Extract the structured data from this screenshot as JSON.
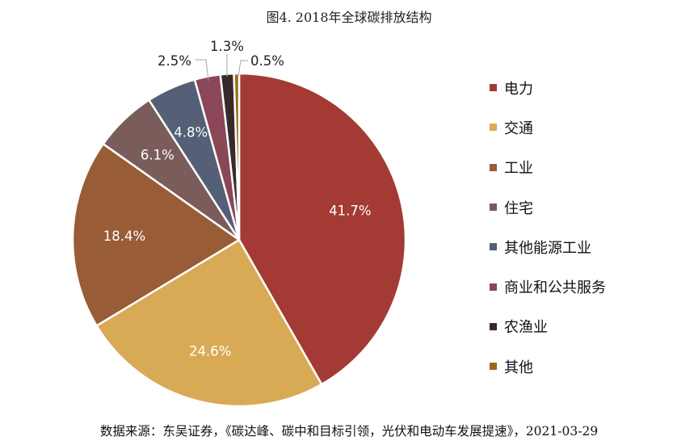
{
  "title": "图4. 2018年全球碳排放结构",
  "source": "数据来源：东吴证券，《碳达峰、碳中和目标引领，光伏和电动车发展提速》，2021-03-29",
  "chart_data": {
    "type": "pie",
    "title": "图4. 2018年全球碳排放结构",
    "legend_position": "right",
    "slices": [
      {
        "label": "电力",
        "value": 41.7,
        "value_label": "41.7%",
        "color": "#A33B34"
      },
      {
        "label": "交通",
        "value": 24.6,
        "value_label": "24.6%",
        "color": "#D9AA55"
      },
      {
        "label": "工业",
        "value": 18.4,
        "value_label": "18.4%",
        "color": "#985C37"
      },
      {
        "label": "住宅",
        "value": 6.1,
        "value_label": "6.1%",
        "color": "#7A5D5A"
      },
      {
        "label": "其他能源工业",
        "value": 4.8,
        "value_label": "4.8%",
        "color": "#555F75"
      },
      {
        "label": "商业和公共服务",
        "value": 2.5,
        "value_label": "2.5%",
        "color": "#8B4658"
      },
      {
        "label": "农渔业",
        "value": 1.3,
        "value_label": "1.3%",
        "color": "#382A2C"
      },
      {
        "label": "其他",
        "value": 0.5,
        "value_label": "0.5%",
        "color": "#9A6A14"
      }
    ]
  }
}
